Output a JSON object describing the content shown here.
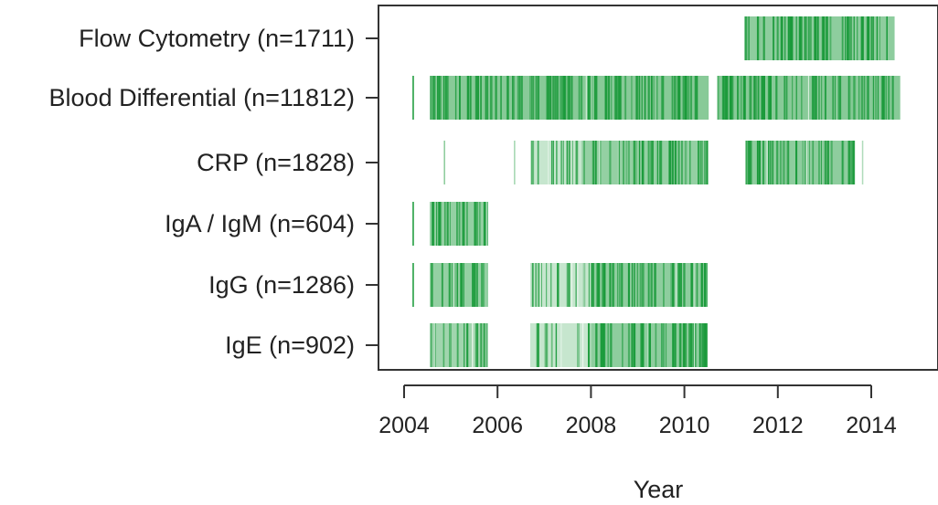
{
  "chart_data": {
    "type": "timeline",
    "title": "",
    "xlabel": "Year",
    "ylabel": "",
    "xlim": [
      2003.5,
      2015.35
    ],
    "x_ticks": [
      2004,
      2006,
      2008,
      2010,
      2012,
      2014
    ],
    "grid": false,
    "colors": {
      "mark": "#1a9a3a",
      "axis": "#333333",
      "text": "#222222"
    },
    "series": [
      {
        "label": "Flow Cytometry (n=1711)",
        "segments": [
          {
            "x": [
              2011.28,
              2014.5
            ],
            "density": 0.9
          }
        ]
      },
      {
        "label": "Blood Differential (n=11812)",
        "segments": [
          {
            "x": [
              2004.18,
              2004.21
            ],
            "density": 1.0
          },
          {
            "x": [
              2004.55,
              2010.52
            ],
            "density": 0.95
          },
          {
            "x": [
              2010.7,
              2014.62
            ],
            "density": 0.95
          }
        ]
      },
      {
        "label": "CRP (n=1828)",
        "segments": [
          {
            "x": [
              2004.85,
              2004.88
            ],
            "density": 0.5
          },
          {
            "x": [
              2006.35,
              2006.38
            ],
            "density": 0.4
          },
          {
            "x": [
              2006.7,
              2007.8
            ],
            "density": 0.45
          },
          {
            "x": [
              2007.8,
              2010.5
            ],
            "density": 0.85
          },
          {
            "x": [
              2011.3,
              2013.65
            ],
            "density": 0.9
          },
          {
            "x": [
              2013.8,
              2013.83
            ],
            "density": 0.3
          }
        ]
      },
      {
        "label": "IgA / IgM (n=604)",
        "segments": [
          {
            "x": [
              2004.18,
              2004.21
            ],
            "density": 1.0
          },
          {
            "x": [
              2004.55,
              2005.8
            ],
            "density": 0.85
          }
        ]
      },
      {
        "label": "IgG (n=1286)",
        "segments": [
          {
            "x": [
              2004.18,
              2004.21
            ],
            "density": 1.0
          },
          {
            "x": [
              2004.55,
              2005.8
            ],
            "density": 0.85
          },
          {
            "x": [
              2006.7,
              2008.0
            ],
            "density": 0.45
          },
          {
            "x": [
              2008.0,
              2010.5
            ],
            "density": 0.9
          }
        ]
      },
      {
        "label": "IgE (n=902)",
        "segments": [
          {
            "x": [
              2004.55,
              2005.8
            ],
            "density": 0.75
          },
          {
            "x": [
              2006.7,
              2008.0
            ],
            "density": 0.45
          },
          {
            "x": [
              2008.0,
              2010.5
            ],
            "density": 0.9
          }
        ]
      }
    ]
  }
}
